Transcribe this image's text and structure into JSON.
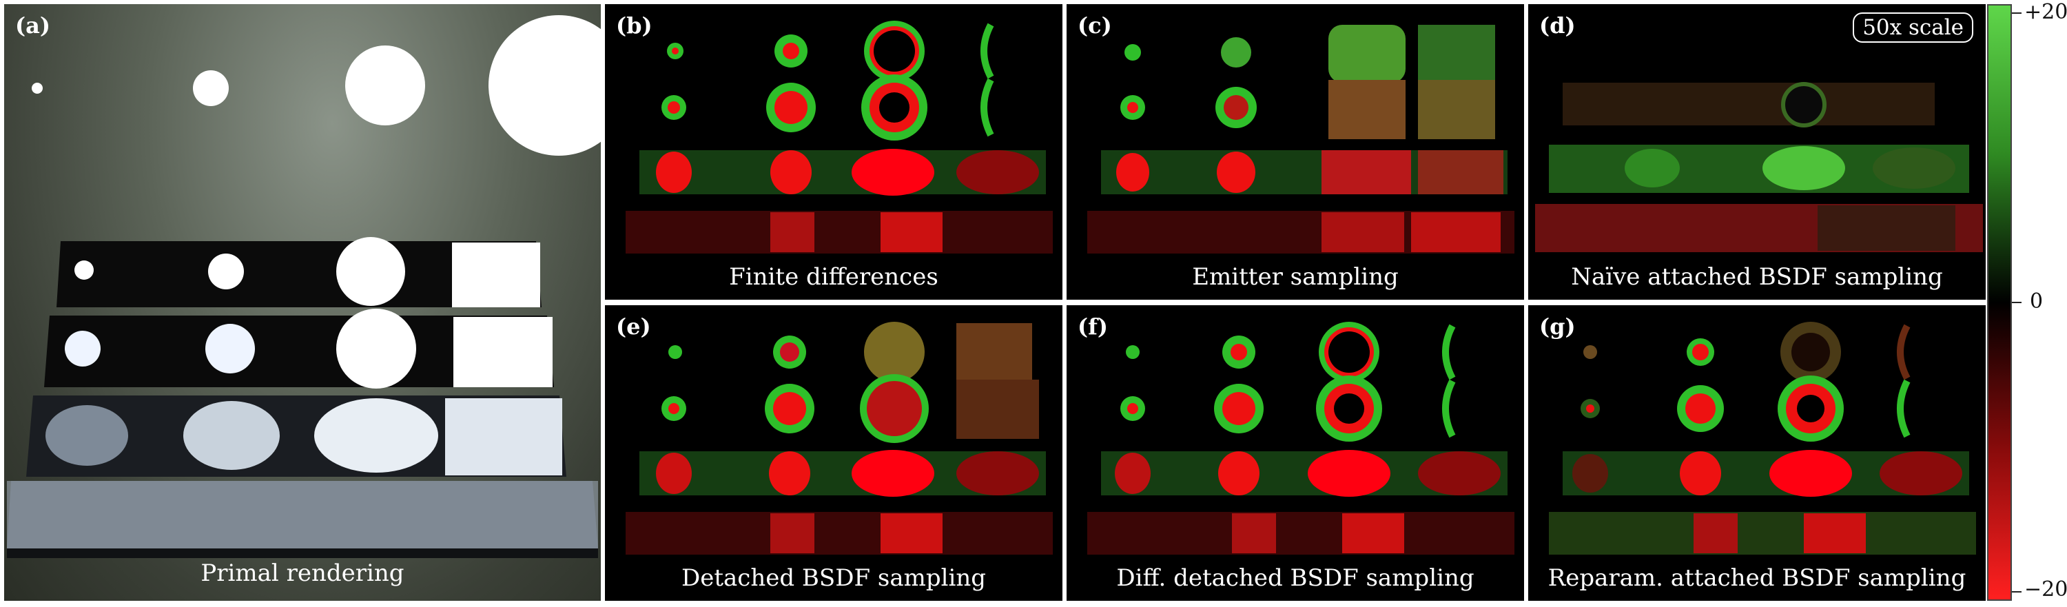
{
  "panels": [
    {
      "id": "a",
      "tag": "(a)",
      "caption": "Primal rendering"
    },
    {
      "id": "b",
      "tag": "(b)",
      "caption": "Finite differences"
    },
    {
      "id": "c",
      "tag": "(c)",
      "caption": "Emitter sampling"
    },
    {
      "id": "d",
      "tag": "(d)",
      "caption": "Naïve attached BSDF sampling",
      "badge": "50x scale"
    },
    {
      "id": "e",
      "tag": "(e)",
      "caption": "Detached BSDF sampling"
    },
    {
      "id": "f",
      "tag": "(f)",
      "caption": "Diff. detached BSDF sampling"
    },
    {
      "id": "g",
      "tag": "(g)",
      "caption": "Reparam. attached BSDF sampling"
    }
  ],
  "colorbar": {
    "top": "+20",
    "mid": "0",
    "bottom": "−20",
    "colors": {
      "positive": "#5fd64a",
      "zero": "#000000",
      "negative": "#ff2020"
    }
  }
}
